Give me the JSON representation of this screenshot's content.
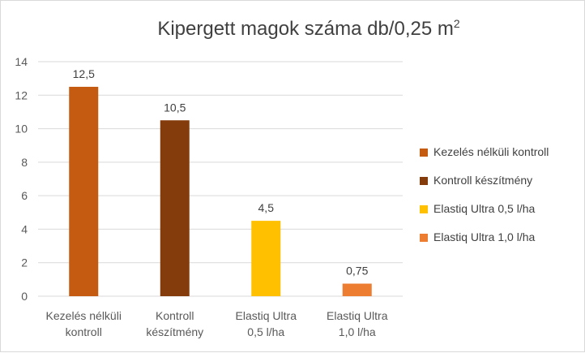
{
  "chart_data": {
    "type": "bar",
    "title": "Kipergett magok száma db/0,25 m",
    "title_superscript": "2",
    "categories": [
      [
        "Kezelés nélküli",
        "kontroll"
      ],
      [
        "Kontroll",
        "készítmény"
      ],
      [
        "Elastiq  Ultra",
        "0,5 l/ha"
      ],
      [
        "Elastiq  Ultra",
        "1,0 l/ha"
      ]
    ],
    "values": [
      12.5,
      10.5,
      4.5,
      0.75
    ],
    "data_labels": [
      "12,5",
      "10,5",
      "4,5",
      "0,75"
    ],
    "colors": [
      "#C55A11",
      "#843C0C",
      "#FFC000",
      "#ED7D31"
    ],
    "ylim": [
      0,
      14
    ],
    "yticks": [
      0,
      2,
      4,
      6,
      8,
      10,
      12,
      14
    ],
    "grid": true,
    "legend_position": "right",
    "legend": [
      "Kezelés nélküli kontroll",
      "Kontroll készítmény",
      "Elastiq  Ultra 0,5 l/ha",
      "Elastiq  Ultra 1,0 l/ha"
    ]
  }
}
